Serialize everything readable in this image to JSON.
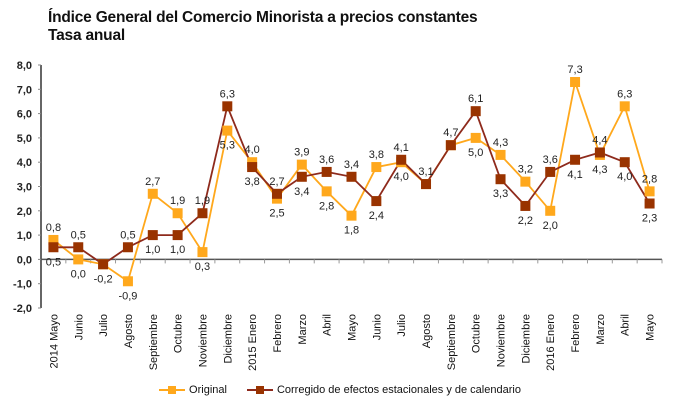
{
  "chart_data": {
    "type": "line",
    "title": "Índice General del Comercio Minorista a precios constantes",
    "subtitle": "Tasa anual",
    "xlabel": "",
    "ylabel": "",
    "ylim": [
      -2.0,
      8.0
    ],
    "yticks": [
      "8,0",
      "7,0",
      "6,0",
      "5,0",
      "4,0",
      "3,0",
      "2,0",
      "1,0",
      "0,0",
      "-1,0",
      "-2,0"
    ],
    "ytick_values": [
      8,
      7,
      6,
      5,
      4,
      3,
      2,
      1,
      0,
      -1,
      -2
    ],
    "grid": false,
    "legend_position": "bottom",
    "categories": [
      "2014 Mayo",
      "Junio",
      "Julio",
      "Agosto",
      "Septiembre",
      "Octubre",
      "Noviembre",
      "Diciembre",
      "2015 Enero",
      "Febrero",
      "Marzo",
      "Abril",
      "Mayo",
      "Junio",
      "Julio",
      "Agosto",
      "Septiembre",
      "Octubre",
      "Noviembre",
      "Diciembre",
      "2016 Enero",
      "Febrero",
      "Marzo",
      "Abril",
      "Mayo"
    ],
    "series": [
      {
        "name": "Original",
        "color": "#FFA81C",
        "values": [
          0.8,
          0.0,
          -0.2,
          -0.9,
          2.7,
          1.9,
          0.3,
          5.3,
          4.0,
          2.5,
          3.9,
          2.8,
          1.8,
          3.8,
          4.0,
          3.1,
          4.7,
          5.0,
          4.3,
          3.2,
          2.0,
          7.3,
          4.3,
          6.3,
          2.8
        ],
        "labels": [
          "0,8",
          "0,0",
          "",
          "-0,9",
          "2,7",
          "1,9",
          "0,3",
          "5,3",
          "4,0",
          "2,5",
          "3,9",
          "2,8",
          "1,8",
          "3,8",
          "4,0",
          "",
          "",
          "5,0",
          "4,3",
          "3,2",
          "2,0",
          "7,3",
          "4,3",
          "6,3",
          "2,8"
        ],
        "label_pos": [
          "above",
          "below",
          "below",
          "below",
          "above",
          "above",
          "below",
          "below",
          "above",
          "below",
          "above",
          "below",
          "below",
          "above",
          "below",
          "above",
          "above",
          "below",
          "above",
          "above",
          "below",
          "above",
          "below",
          "above",
          "above"
        ]
      },
      {
        "name": "Corregido de efectos estacionales y de calendario",
        "color": "#8E2A1C",
        "marker_color": "#993300",
        "values": [
          0.5,
          0.5,
          -0.2,
          0.5,
          1.0,
          1.0,
          1.9,
          6.3,
          3.8,
          2.7,
          3.4,
          3.6,
          3.4,
          2.4,
          4.1,
          3.1,
          4.7,
          6.1,
          3.3,
          2.2,
          3.6,
          4.1,
          4.4,
          4.0,
          2.3
        ],
        "labels": [
          "0,5",
          "0,5",
          "-0,2",
          "0,5",
          "1,0",
          "1,0",
          "1,9",
          "6,3",
          "3,8",
          "2,7",
          "3,4",
          "3,6",
          "3,4",
          "2,4",
          "4,1",
          "3,1",
          "4,7",
          "6,1",
          "3,3",
          "2,2",
          "3,6",
          "4,1",
          "4,4",
          "4,0",
          "2,3"
        ],
        "label_pos": [
          "below",
          "above",
          "below",
          "above",
          "below",
          "below",
          "above",
          "above",
          "below",
          "above",
          "below",
          "above",
          "above",
          "below",
          "above",
          "above",
          "above",
          "above",
          "below",
          "below",
          "above",
          "below",
          "above",
          "below",
          "below"
        ]
      }
    ]
  },
  "legend": {
    "items": [
      {
        "label": "Original",
        "color": "#FFA81C"
      },
      {
        "label": "Corregido de efectos estacionales y de calendario",
        "color": "#8E2A1C",
        "marker_color": "#993300"
      }
    ]
  }
}
